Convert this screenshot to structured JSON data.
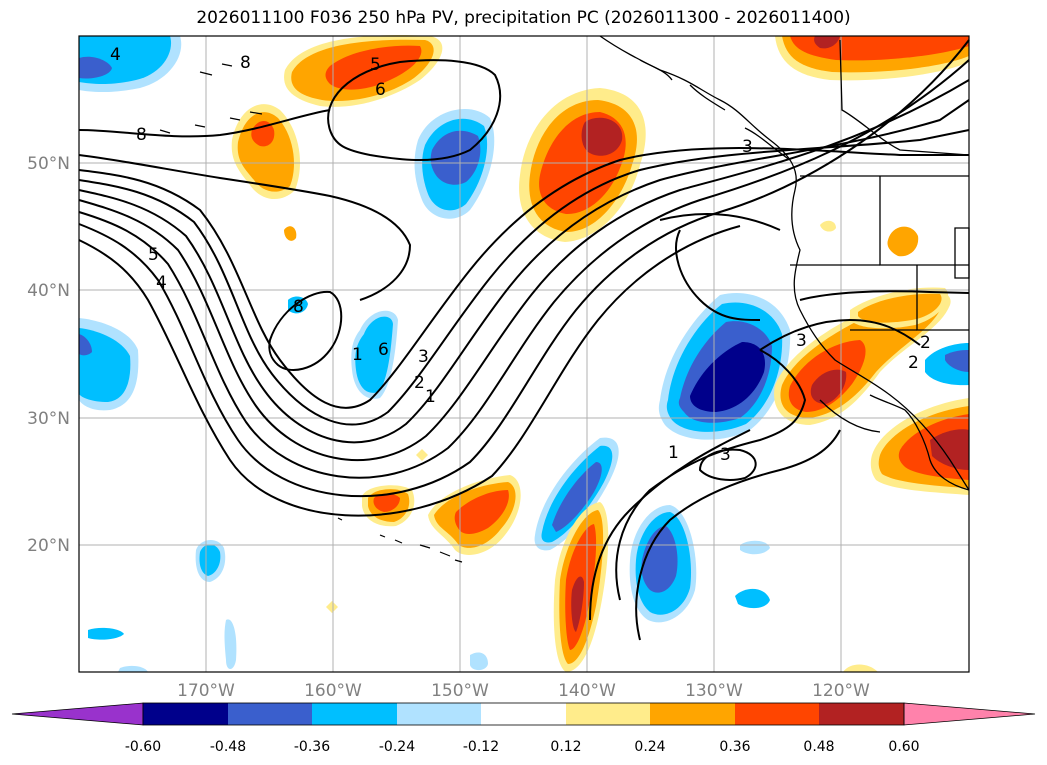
{
  "title": "2026011100 F036 250 hPa PV, precipitation PC (2026011300 - 2026011400)",
  "latitude_labels": [
    "50°N",
    "40°N",
    "30°N",
    "20°N"
  ],
  "longitude_labels": [
    "170°W",
    "160°W",
    "150°W",
    "140°W",
    "130°W",
    "120°W"
  ],
  "contour_labels": [
    "1",
    "2",
    "3",
    "4",
    "5",
    "6",
    "8",
    "1",
    "2",
    "3",
    "1",
    "3",
    "3",
    "2",
    "6",
    "8",
    "8",
    "4",
    "5"
  ],
  "colorbar": {
    "ticks": [
      "-0.60",
      "-0.48",
      "-0.36",
      "-0.24",
      "-0.12",
      "0.12",
      "0.24",
      "0.36",
      "0.48",
      "0.60"
    ],
    "colors": [
      "#9932cc",
      "#00008b",
      "#3a5fcd",
      "#00bfff",
      "#b0e2ff",
      "#ffffff",
      "#ffec8b",
      "#ffa500",
      "#ff4500",
      "#b22222",
      "#ff82ab"
    ]
  },
  "colors": {
    "land_outline": "#000000",
    "grid": "#b0b0b0",
    "contour": "#000000"
  }
}
